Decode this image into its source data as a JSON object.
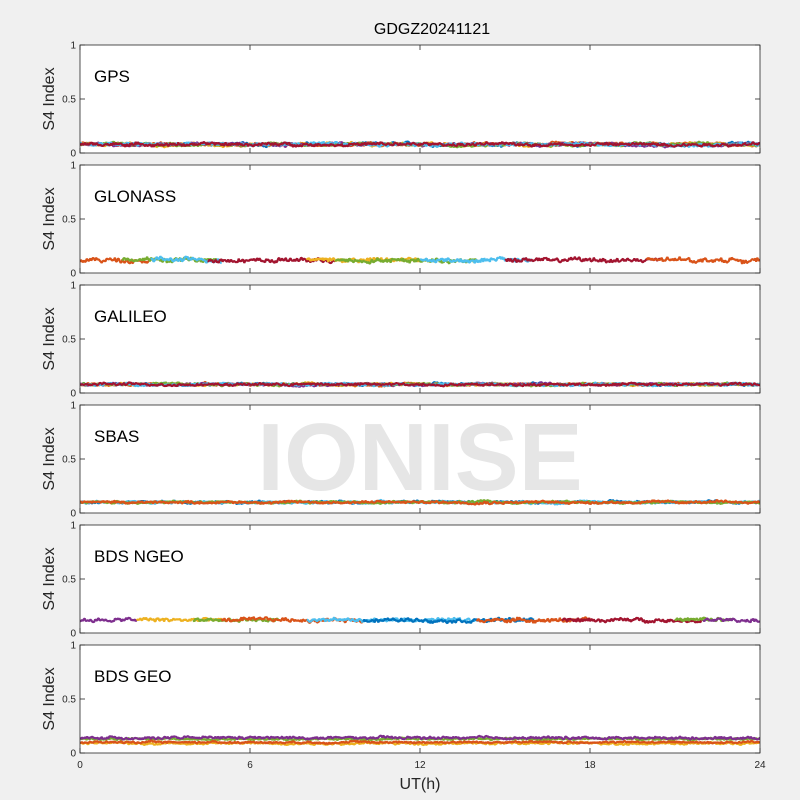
{
  "title": "GDGZ20241121",
  "watermark": "IONISE",
  "colors": {
    "series": [
      "#0072BD",
      "#D95319",
      "#EDB120",
      "#7E2F8E",
      "#77AC30",
      "#4DBEEE",
      "#A2142F"
    ],
    "background": "#f0f0f0",
    "axes_bg": "#ffffff"
  },
  "chart_data": [
    {
      "type": "line",
      "label": "GPS",
      "ylabel": "S4 Index",
      "xlabel": "",
      "xlim": [
        0,
        24
      ],
      "ylim": [
        0,
        1
      ],
      "x_ticks": [
        0,
        6,
        12,
        18,
        24
      ],
      "y_ticks": [
        0,
        0.5,
        1
      ],
      "x_tick_labels": [],
      "y_tick_labels": [
        "0",
        "0.5",
        "1"
      ],
      "grid": false,
      "approx_level": 0.08,
      "noise": 0.025,
      "colors_used": [
        0,
        1,
        2,
        3,
        4,
        5,
        6
      ]
    },
    {
      "type": "line",
      "label": "GLONASS",
      "ylabel": "S4 Index",
      "xlabel": "",
      "xlim": [
        0,
        24
      ],
      "ylim": [
        0,
        1
      ],
      "x_ticks": [
        0,
        6,
        12,
        18,
        24
      ],
      "y_ticks": [
        0,
        0.5,
        1
      ],
      "x_tick_labels": [],
      "y_tick_labels": [
        "0",
        "0.5",
        "1"
      ],
      "grid": false,
      "approx_level": 0.12,
      "noise": 0.035,
      "segments": [
        [
          0,
          2.5,
          1
        ],
        [
          1.5,
          5,
          4
        ],
        [
          2.5,
          5,
          5
        ],
        [
          4.5,
          9,
          6
        ],
        [
          8,
          12,
          2
        ],
        [
          9,
          14,
          4
        ],
        [
          12,
          16,
          5
        ],
        [
          15,
          20.5,
          6
        ],
        [
          20,
          24,
          1
        ]
      ]
    },
    {
      "type": "line",
      "label": "GALILEO",
      "ylabel": "S4 Index",
      "xlabel": "",
      "xlim": [
        0,
        24
      ],
      "ylim": [
        0,
        1
      ],
      "x_ticks": [
        0,
        6,
        12,
        18,
        24
      ],
      "y_ticks": [
        0,
        0.5,
        1
      ],
      "x_tick_labels": [],
      "y_tick_labels": [
        "0",
        "0.5",
        "1"
      ],
      "grid": false,
      "approx_level": 0.08,
      "noise": 0.02,
      "colors_used": [
        0,
        1,
        2,
        3,
        4,
        5,
        6
      ]
    },
    {
      "type": "line",
      "label": "SBAS",
      "ylabel": "S4 Index",
      "xlabel": "",
      "xlim": [
        0,
        24
      ],
      "ylim": [
        0,
        1
      ],
      "x_ticks": [
        0,
        6,
        12,
        18,
        24
      ],
      "y_ticks": [
        0,
        0.5,
        1
      ],
      "x_tick_labels": [],
      "y_tick_labels": [
        "0",
        "0.5",
        "1"
      ],
      "grid": false,
      "approx_level": 0.1,
      "noise": 0.02,
      "colors_used": [
        0,
        5,
        4,
        1
      ]
    },
    {
      "type": "line",
      "label": "BDS NGEO",
      "ylabel": "S4 Index",
      "xlabel": "",
      "xlim": [
        0,
        24
      ],
      "ylim": [
        0,
        1
      ],
      "x_ticks": [
        0,
        6,
        12,
        18,
        24
      ],
      "y_ticks": [
        0,
        0.5,
        1
      ],
      "x_tick_labels": [],
      "y_tick_labels": [
        "0",
        "0.5",
        "1"
      ],
      "grid": false,
      "approx_level": 0.12,
      "noise": 0.03,
      "segments": [
        [
          0,
          2,
          3
        ],
        [
          2,
          5,
          2
        ],
        [
          4,
          7,
          4
        ],
        [
          5,
          10,
          1
        ],
        [
          8,
          14,
          5
        ],
        [
          10,
          16,
          0
        ],
        [
          14,
          18,
          1
        ],
        [
          17,
          22,
          6
        ],
        [
          21,
          23,
          4
        ],
        [
          22,
          24,
          3
        ]
      ]
    },
    {
      "type": "line",
      "label": "BDS GEO",
      "ylabel": "S4 Index",
      "xlabel": "UT(h)",
      "xlim": [
        0,
        24
      ],
      "ylim": [
        0,
        1
      ],
      "x_ticks": [
        0,
        6,
        12,
        18,
        24
      ],
      "y_ticks": [
        0,
        0.5,
        1
      ],
      "x_tick_labels": [
        "0",
        "6",
        "12",
        "18",
        "24"
      ],
      "y_tick_labels": [
        "0",
        "0.5",
        "1"
      ],
      "grid": false,
      "series": [
        {
          "color": 2,
          "level": 0.09,
          "noise": 0.018
        },
        {
          "color": 4,
          "level": 0.13,
          "noise": 0.015
        },
        {
          "color": 3,
          "level": 0.14,
          "noise": 0.02
        },
        {
          "color": 1,
          "level": 0.1,
          "noise": 0.015
        }
      ]
    }
  ]
}
